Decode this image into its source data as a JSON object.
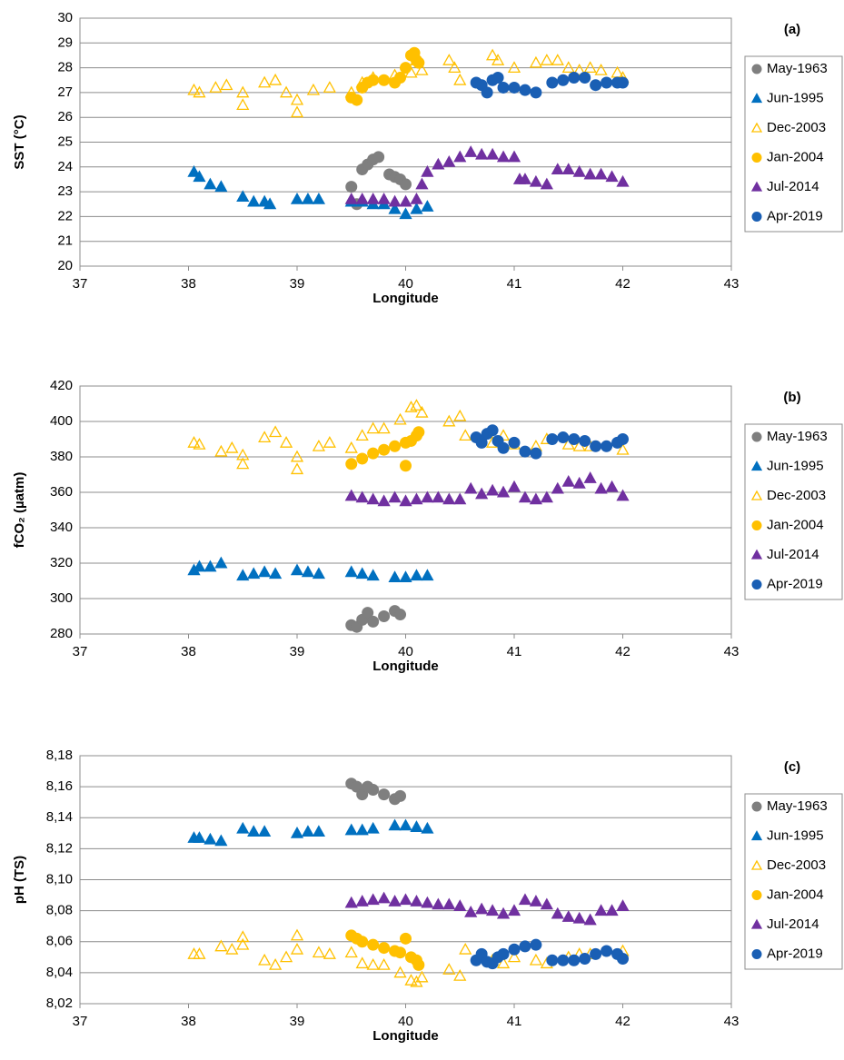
{
  "chart_data": [
    {
      "type": "scatter",
      "panel_label": "(a)",
      "ylabel": "SST (°C)",
      "xlabel": "Longitude",
      "xlim": [
        37,
        43
      ],
      "xticks": [
        37,
        38,
        39,
        40,
        41,
        42,
        43
      ],
      "ylim": [
        20,
        30
      ],
      "yticks": [
        20,
        21,
        22,
        23,
        24,
        25,
        26,
        27,
        28,
        29,
        30
      ],
      "grid": true,
      "legend": "right",
      "series": [
        {
          "name": "May-1963",
          "color": "#7f7f7f",
          "marker": "circle",
          "filled": true,
          "x": [
            39.5,
            39.55,
            39.6,
            39.65,
            39.7,
            39.75,
            39.85,
            39.9,
            39.95,
            40.0
          ],
          "values": [
            23.2,
            22.5,
            23.9,
            24.1,
            24.3,
            24.4,
            23.7,
            23.6,
            23.5,
            23.3
          ]
        },
        {
          "name": "Jun-1995",
          "color": "#0070c0",
          "marker": "triangle",
          "filled": true,
          "x": [
            38.05,
            38.1,
            38.2,
            38.3,
            38.5,
            38.6,
            38.7,
            38.75,
            39.0,
            39.1,
            39.2,
            39.5,
            39.6,
            39.7,
            39.8,
            39.9,
            40.0,
            40.1,
            40.2
          ],
          "values": [
            23.8,
            23.6,
            23.3,
            23.2,
            22.8,
            22.6,
            22.6,
            22.5,
            22.7,
            22.7,
            22.7,
            22.6,
            22.6,
            22.5,
            22.5,
            22.3,
            22.1,
            22.3,
            22.4
          ]
        },
        {
          "name": "Dec-2003",
          "color": "#ffc000",
          "marker": "triangle",
          "filled": false,
          "x": [
            38.05,
            38.1,
            38.25,
            38.35,
            38.5,
            38.5,
            38.7,
            38.8,
            38.9,
            39.0,
            39.0,
            39.15,
            39.3,
            39.5,
            39.6,
            39.7,
            39.9,
            40.05,
            40.1,
            40.15,
            40.4,
            40.45,
            40.5,
            40.8,
            40.85,
            41.0,
            41.2,
            41.3,
            41.4,
            41.5,
            41.6,
            41.7,
            41.8,
            41.95,
            42.0
          ],
          "values": [
            27.1,
            27.0,
            27.2,
            27.3,
            27.0,
            26.5,
            27.4,
            27.5,
            27.0,
            26.7,
            26.2,
            27.1,
            27.2,
            27.0,
            27.4,
            27.6,
            27.7,
            27.8,
            28.3,
            27.9,
            28.3,
            28.0,
            27.5,
            28.5,
            28.3,
            28.0,
            28.2,
            28.3,
            28.3,
            28.0,
            27.9,
            28.0,
            27.9,
            27.8,
            27.6
          ]
        },
        {
          "name": "Jan-2004",
          "color": "#ffc000",
          "marker": "circle",
          "filled": true,
          "x": [
            39.5,
            39.55,
            39.6,
            39.65,
            39.7,
            39.8,
            39.9,
            39.95,
            40.0,
            40.05,
            40.08,
            40.1,
            40.12
          ],
          "values": [
            26.8,
            26.7,
            27.2,
            27.4,
            27.5,
            27.5,
            27.4,
            27.6,
            28.0,
            28.5,
            28.6,
            28.3,
            28.2
          ]
        },
        {
          "name": "Jul-2014",
          "color": "#7030a0",
          "marker": "triangle",
          "filled": true,
          "x": [
            39.5,
            39.6,
            39.7,
            39.8,
            39.9,
            40.0,
            40.1,
            40.15,
            40.2,
            40.3,
            40.4,
            40.5,
            40.6,
            40.7,
            40.8,
            40.9,
            41.0,
            41.05,
            41.1,
            41.2,
            41.3,
            41.4,
            41.5,
            41.6,
            41.7,
            41.8,
            41.9,
            42.0
          ],
          "values": [
            22.7,
            22.7,
            22.7,
            22.7,
            22.6,
            22.6,
            22.7,
            23.3,
            23.8,
            24.1,
            24.2,
            24.4,
            24.6,
            24.5,
            24.5,
            24.4,
            24.4,
            23.5,
            23.5,
            23.4,
            23.3,
            23.9,
            23.9,
            23.8,
            23.7,
            23.7,
            23.6,
            23.4
          ]
        },
        {
          "name": "Apr-2019",
          "color": "#1a5fb4",
          "marker": "circle",
          "filled": true,
          "x": [
            40.65,
            40.7,
            40.75,
            40.8,
            40.85,
            40.9,
            41.0,
            41.1,
            41.2,
            41.35,
            41.45,
            41.55,
            41.65,
            41.75,
            41.85,
            41.95,
            42.0
          ],
          "values": [
            27.4,
            27.3,
            27.0,
            27.5,
            27.6,
            27.2,
            27.2,
            27.1,
            27.0,
            27.4,
            27.5,
            27.6,
            27.6,
            27.3,
            27.4,
            27.4,
            27.4
          ]
        }
      ]
    },
    {
      "type": "scatter",
      "panel_label": "(b)",
      "ylabel": "fCO₂ (µatm)",
      "xlabel": "Longitude",
      "xlim": [
        37,
        43
      ],
      "xticks": [
        37,
        38,
        39,
        40,
        41,
        42,
        43
      ],
      "ylim": [
        280,
        420
      ],
      "yticks": [
        280,
        300,
        320,
        340,
        360,
        380,
        400,
        420
      ],
      "grid": true,
      "legend": "right",
      "series": [
        {
          "name": "May-1963",
          "color": "#7f7f7f",
          "marker": "circle",
          "filled": true,
          "x": [
            39.5,
            39.55,
            39.6,
            39.65,
            39.7,
            39.8,
            39.9,
            39.95
          ],
          "values": [
            285,
            284,
            288,
            292,
            287,
            290,
            293,
            291
          ]
        },
        {
          "name": "Jun-1995",
          "color": "#0070c0",
          "marker": "triangle",
          "filled": true,
          "x": [
            38.05,
            38.1,
            38.2,
            38.3,
            38.5,
            38.6,
            38.7,
            38.8,
            39.0,
            39.1,
            39.2,
            39.5,
            39.6,
            39.7,
            39.9,
            40.0,
            40.1,
            40.2
          ],
          "values": [
            316,
            318,
            318,
            320,
            313,
            314,
            315,
            314,
            316,
            315,
            314,
            315,
            314,
            313,
            312,
            312,
            313,
            313
          ]
        },
        {
          "name": "Dec-2003",
          "color": "#ffc000",
          "marker": "triangle",
          "filled": false,
          "x": [
            38.05,
            38.1,
            38.3,
            38.4,
            38.5,
            38.5,
            38.7,
            38.8,
            38.9,
            39.0,
            39.0,
            39.2,
            39.3,
            39.5,
            39.6,
            39.7,
            39.8,
            39.95,
            40.05,
            40.1,
            40.15,
            40.4,
            40.5,
            40.55,
            40.8,
            40.9,
            41.0,
            41.2,
            41.3,
            41.5,
            41.6,
            41.7,
            42.0
          ],
          "values": [
            388,
            387,
            383,
            385,
            381,
            376,
            391,
            394,
            388,
            380,
            373,
            386,
            388,
            385,
            392,
            396,
            396,
            401,
            408,
            409,
            405,
            400,
            403,
            392,
            388,
            392,
            387,
            386,
            390,
            387,
            386,
            386,
            384
          ]
        },
        {
          "name": "Jan-2004",
          "color": "#ffc000",
          "marker": "circle",
          "filled": true,
          "x": [
            39.5,
            39.6,
            39.7,
            39.8,
            39.9,
            40.0,
            40.0,
            40.05,
            40.1,
            40.12
          ],
          "values": [
            376,
            379,
            382,
            384,
            386,
            388,
            375,
            389,
            392,
            394
          ]
        },
        {
          "name": "Jul-2014",
          "color": "#7030a0",
          "marker": "triangle",
          "filled": true,
          "x": [
            39.5,
            39.6,
            39.7,
            39.8,
            39.9,
            40.0,
            40.1,
            40.2,
            40.3,
            40.4,
            40.5,
            40.6,
            40.7,
            40.8,
            40.9,
            41.0,
            41.1,
            41.2,
            41.3,
            41.4,
            41.5,
            41.6,
            41.7,
            41.8,
            41.9,
            42.0
          ],
          "values": [
            358,
            357,
            356,
            355,
            357,
            355,
            356,
            357,
            357,
            356,
            356,
            362,
            359,
            361,
            360,
            363,
            357,
            356,
            357,
            362,
            366,
            365,
            368,
            362,
            363,
            358
          ]
        },
        {
          "name": "Apr-2019",
          "color": "#1a5fb4",
          "marker": "circle",
          "filled": true,
          "x": [
            40.65,
            40.7,
            40.75,
            40.8,
            40.85,
            40.9,
            41.0,
            41.1,
            41.2,
            41.35,
            41.45,
            41.55,
            41.65,
            41.75,
            41.85,
            41.95,
            42.0
          ],
          "values": [
            391,
            388,
            393,
            395,
            389,
            385,
            388,
            383,
            382,
            390,
            391,
            390,
            389,
            386,
            386,
            388,
            390
          ]
        }
      ]
    },
    {
      "type": "scatter",
      "panel_label": "(c)",
      "ylabel": "pH (TS)",
      "xlabel": "Longitude",
      "xlim": [
        37,
        43
      ],
      "xticks": [
        37,
        38,
        39,
        40,
        41,
        42,
        43
      ],
      "ylim": [
        8.02,
        8.18
      ],
      "yticks": [
        {
          "value": 8.02,
          "label": "8,02"
        },
        {
          "value": 8.04,
          "label": "8,04"
        },
        {
          "value": 8.06,
          "label": "8,06"
        },
        {
          "value": 8.08,
          "label": "8,08"
        },
        {
          "value": 8.1,
          "label": "8,10"
        },
        {
          "value": 8.12,
          "label": "8,12"
        },
        {
          "value": 8.14,
          "label": "8,14"
        },
        {
          "value": 8.16,
          "label": "8,16"
        },
        {
          "value": 8.18,
          "label": "8,18"
        }
      ],
      "grid": true,
      "legend": "right",
      "series": [
        {
          "name": "May-1963",
          "color": "#7f7f7f",
          "marker": "circle",
          "filled": true,
          "x": [
            39.5,
            39.55,
            39.6,
            39.65,
            39.7,
            39.8,
            39.9,
            39.95
          ],
          "values": [
            8.162,
            8.16,
            8.155,
            8.16,
            8.158,
            8.155,
            8.152,
            8.154
          ]
        },
        {
          "name": "Jun-1995",
          "color": "#0070c0",
          "marker": "triangle",
          "filled": true,
          "x": [
            38.05,
            38.1,
            38.2,
            38.3,
            38.5,
            38.6,
            38.7,
            39.0,
            39.1,
            39.2,
            39.5,
            39.6,
            39.7,
            39.9,
            40.0,
            40.1,
            40.2
          ],
          "values": [
            8.127,
            8.127,
            8.126,
            8.125,
            8.133,
            8.131,
            8.131,
            8.13,
            8.131,
            8.131,
            8.132,
            8.132,
            8.133,
            8.135,
            8.135,
            8.134,
            8.133
          ]
        },
        {
          "name": "Dec-2003",
          "color": "#ffc000",
          "marker": "triangle",
          "filled": false,
          "x": [
            38.05,
            38.1,
            38.3,
            38.4,
            38.5,
            38.5,
            38.7,
            38.8,
            38.9,
            39.0,
            39.0,
            39.2,
            39.3,
            39.5,
            39.6,
            39.7,
            39.8,
            39.95,
            40.05,
            40.1,
            40.15,
            40.4,
            40.5,
            40.55,
            40.8,
            40.9,
            41.0,
            41.2,
            41.3,
            41.5,
            41.6,
            41.7,
            42.0
          ],
          "values": [
            8.052,
            8.052,
            8.057,
            8.055,
            8.058,
            8.063,
            8.048,
            8.045,
            8.05,
            8.055,
            8.064,
            8.053,
            8.052,
            8.053,
            8.046,
            8.045,
            8.045,
            8.04,
            8.035,
            8.034,
            8.037,
            8.042,
            8.038,
            8.055,
            8.048,
            8.046,
            8.05,
            8.048,
            8.046,
            8.05,
            8.052,
            8.052,
            8.054
          ]
        },
        {
          "name": "Jan-2004",
          "color": "#ffc000",
          "marker": "circle",
          "filled": true,
          "x": [
            39.5,
            39.55,
            39.6,
            39.7,
            39.8,
            39.9,
            39.95,
            40.0,
            40.05,
            40.1,
            40.12
          ],
          "values": [
            8.064,
            8.062,
            8.06,
            8.058,
            8.056,
            8.054,
            8.053,
            8.062,
            8.05,
            8.048,
            8.045
          ]
        },
        {
          "name": "Jul-2014",
          "color": "#7030a0",
          "marker": "triangle",
          "filled": true,
          "x": [
            39.5,
            39.6,
            39.7,
            39.8,
            39.9,
            40.0,
            40.1,
            40.2,
            40.3,
            40.4,
            40.5,
            40.6,
            40.7,
            40.8,
            40.9,
            41.0,
            41.1,
            41.2,
            41.3,
            41.4,
            41.5,
            41.6,
            41.7,
            41.8,
            41.9,
            42.0
          ],
          "values": [
            8.085,
            8.086,
            8.087,
            8.088,
            8.086,
            8.087,
            8.086,
            8.085,
            8.084,
            8.084,
            8.083,
            8.079,
            8.081,
            8.08,
            8.078,
            8.08,
            8.087,
            8.086,
            8.084,
            8.078,
            8.076,
            8.075,
            8.074,
            8.08,
            8.08,
            8.083
          ]
        },
        {
          "name": "Apr-2019",
          "color": "#1a5fb4",
          "marker": "circle",
          "filled": true,
          "x": [
            40.65,
            40.7,
            40.75,
            40.8,
            40.85,
            40.9,
            41.0,
            41.1,
            41.2,
            41.35,
            41.45,
            41.55,
            41.65,
            41.75,
            41.85,
            41.95,
            42.0
          ],
          "values": [
            8.048,
            8.052,
            8.047,
            8.046,
            8.05,
            8.052,
            8.055,
            8.057,
            8.058,
            8.048,
            8.048,
            8.048,
            8.049,
            8.052,
            8.054,
            8.052,
            8.049
          ]
        }
      ]
    }
  ]
}
